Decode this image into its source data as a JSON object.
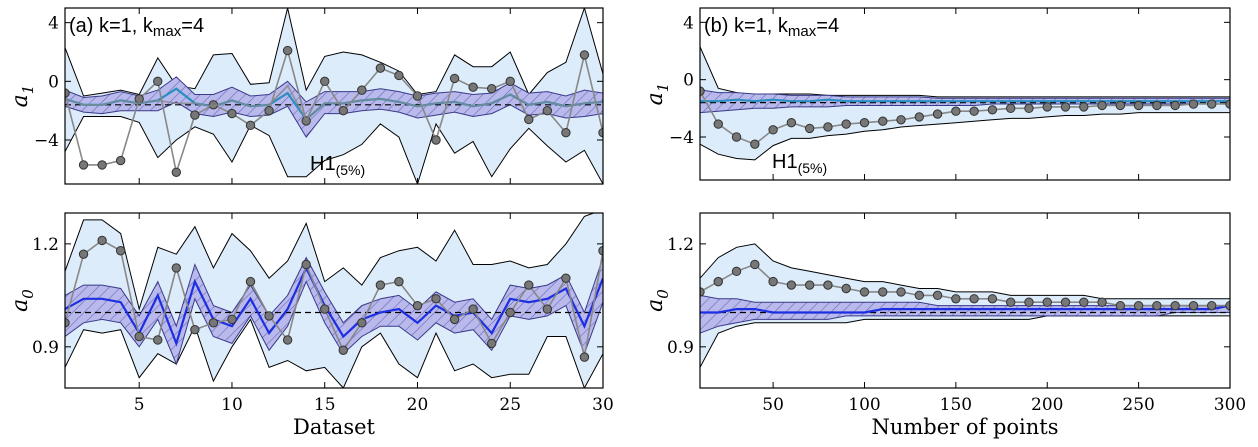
{
  "colors": {
    "outer_band": "#dcecfa",
    "inner_band": "#b9b9ec",
    "hatch": "#6a6ab8",
    "mean_line_a1": "#2a8ec0",
    "mean_line_a0": "#1d2fe0",
    "dataset_line": "#888888",
    "dataset_marker": "#777777",
    "true_value": "#000000"
  },
  "chart_data": [
    {
      "type": "line",
      "panel": "a",
      "annotation": "(a) k=1, k",
      "annotation_sub": "max",
      "annotation_tail": "=4",
      "label": "H1",
      "label_sub": "(5%)",
      "ylabel": "a",
      "ylabel_sub": "1",
      "xlabel": "",
      "xlim": [
        1,
        30
      ],
      "ylim": [
        -7,
        5
      ],
      "yticks": [
        "4",
        "0",
        "−4"
      ],
      "xticks": [],
      "x": [
        1,
        2,
        3,
        4,
        5,
        6,
        7,
        8,
        9,
        10,
        11,
        12,
        13,
        14,
        15,
        16,
        17,
        18,
        19,
        20,
        21,
        22,
        23,
        24,
        25,
        26,
        27,
        28,
        29,
        30
      ],
      "true_value": -1.6,
      "series": [
        {
          "values": [
            -0.8,
            -5.7,
            -5.7,
            -5.4,
            -1.2,
            0.0,
            -6.2,
            -2.3,
            -1.6,
            -2.2,
            -3.0,
            -2.0,
            2.1,
            -2.7,
            0.0,
            -2.0,
            -0.6,
            0.9,
            0.4,
            -1.0,
            -4.0,
            0.2,
            -0.4,
            -0.5,
            0.0,
            -2.6,
            -2.0,
            -3.5,
            1.8,
            -3.5
          ]
        },
        {
          "values": [
            -1.2,
            -1.6,
            -1.6,
            -1.3,
            -1.5,
            -1.3,
            -1.5,
            -1.5,
            -1.7,
            -1.3,
            -1.7,
            -1.6,
            -0.3,
            -2.6,
            -1.5,
            -1.5,
            -1.3,
            -1.2,
            -1.4,
            -1.7,
            -1.5,
            -1.4,
            -1.7,
            -1.5,
            -0.9,
            -1.6,
            -1.4,
            -1.7,
            -1.5,
            -1.4
          ]
        }
      ],
      "mean": [
        -1.2,
        -1.6,
        -1.6,
        -1.3,
        -1.5,
        -1.3,
        -0.5,
        -1.5,
        -1.7,
        -1.3,
        -1.7,
        -1.6,
        -0.8,
        -2.6,
        -1.5,
        -1.5,
        -1.3,
        -1.2,
        -1.4,
        -1.7,
        -1.5,
        -1.4,
        -1.7,
        -1.5,
        -0.9,
        -1.6,
        -1.4,
        -1.7,
        -1.5,
        -1.4
      ],
      "inner_band": {
        "upper": [
          -0.6,
          -1.1,
          -1.0,
          -0.7,
          -1.0,
          -0.6,
          0.3,
          -0.9,
          -0.9,
          -0.4,
          -1.0,
          -0.9,
          0.0,
          -1.4,
          -0.7,
          -0.7,
          -0.7,
          -0.5,
          -0.7,
          -1.0,
          -0.8,
          -0.7,
          -0.9,
          -0.8,
          -0.1,
          -0.8,
          -0.7,
          -1.0,
          -0.6,
          -0.8
        ],
        "lower": [
          -1.7,
          -2.1,
          -2.2,
          -2.0,
          -2.0,
          -2.0,
          -1.4,
          -2.2,
          -2.4,
          -2.1,
          -2.4,
          -2.3,
          -1.7,
          -3.8,
          -2.2,
          -2.2,
          -2.0,
          -1.9,
          -2.1,
          -2.5,
          -2.3,
          -2.1,
          -2.4,
          -2.2,
          -1.6,
          -2.3,
          -2.2,
          -2.5,
          -2.4,
          -2.2
        ]
      },
      "outer_band": {
        "upper": [
          2.3,
          -1.0,
          -0.8,
          -0.6,
          -0.9,
          1.6,
          -0.3,
          -0.5,
          1.8,
          1.9,
          -0.2,
          -0.1,
          5.0,
          -0.6,
          1.7,
          2.0,
          1.8,
          1.3,
          0.7,
          -0.9,
          -0.7,
          1.8,
          1.0,
          1.0,
          2.0,
          -0.9,
          0.6,
          1.3,
          5.0,
          0.5
        ],
        "lower": [
          -4.8,
          -2.4,
          -2.4,
          -2.4,
          -2.8,
          -5.2,
          -4.0,
          -3.1,
          -3.6,
          -5.5,
          -3.0,
          -3.7,
          -6.5,
          -6.5,
          -5.4,
          -5.0,
          -4.3,
          -2.9,
          -3.8,
          -7.0,
          -2.9,
          -4.9,
          -4.1,
          -6.5,
          -4.6,
          -3.2,
          -4.4,
          -5.5,
          -4.7,
          -7.0
        ]
      }
    },
    {
      "type": "line",
      "panel": "a",
      "ylabel": "a",
      "ylabel_sub": "0",
      "xlabel": "Dataset",
      "xlim": [
        1,
        30
      ],
      "ylim": [
        0.78,
        1.29
      ],
      "yticks": [
        "1.2",
        "0.9"
      ],
      "xticks": [
        "5",
        "10",
        "15",
        "20",
        "25",
        "30"
      ],
      "x": [
        1,
        2,
        3,
        4,
        5,
        6,
        7,
        8,
        9,
        10,
        11,
        12,
        13,
        14,
        15,
        16,
        17,
        18,
        19,
        20,
        21,
        22,
        23,
        24,
        25,
        26,
        27,
        28,
        29,
        30
      ],
      "true_value": 1.0,
      "series": [
        {
          "values": [
            0.97,
            1.17,
            1.21,
            1.18,
            0.93,
            0.92,
            1.13,
            0.95,
            0.97,
            0.98,
            1.09,
            0.99,
            0.92,
            1.14,
            1.01,
            0.89,
            0.97,
            1.08,
            1.09,
            1.02,
            1.04,
            0.98,
            1.01,
            0.91,
            1.0,
            1.08,
            1.01,
            1.1,
            0.87,
            1.18
          ]
        }
      ],
      "mean": [
        1.01,
        1.04,
        1.04,
        1.03,
        0.94,
        1.05,
        0.91,
        1.09,
        0.98,
        0.96,
        1.04,
        0.94,
        1.01,
        1.13,
        1.02,
        0.93,
        0.98,
        1.0,
        1.01,
        0.97,
        1.02,
        0.99,
        1.0,
        0.94,
        1.04,
        1.03,
        1.04,
        1.07,
        0.96,
        1.1
      ],
      "inner_band": {
        "upper": [
          1.05,
          1.08,
          1.08,
          1.07,
          0.99,
          1.09,
          0.96,
          1.14,
          1.02,
          1.0,
          1.08,
          0.99,
          1.05,
          1.16,
          1.06,
          0.97,
          1.02,
          1.04,
          1.05,
          1.01,
          1.06,
          1.03,
          1.04,
          0.98,
          1.08,
          1.07,
          1.08,
          1.11,
          1.0,
          1.16
        ],
        "lower": [
          0.93,
          0.97,
          0.98,
          0.97,
          0.9,
          0.98,
          0.85,
          1.04,
          0.93,
          0.91,
          0.99,
          0.89,
          0.96,
          1.09,
          0.97,
          0.88,
          0.93,
          0.96,
          0.96,
          0.92,
          0.97,
          0.94,
          0.95,
          0.89,
          0.99,
          0.98,
          0.99,
          1.02,
          0.88,
          1.03
        ]
      },
      "outer_band": {
        "upper": [
          1.12,
          1.27,
          1.27,
          1.23,
          1.01,
          1.19,
          1.17,
          1.25,
          1.13,
          1.23,
          1.18,
          1.1,
          1.15,
          1.26,
          1.09,
          1.13,
          1.08,
          1.16,
          1.18,
          1.19,
          1.15,
          1.24,
          1.14,
          1.14,
          1.15,
          1.13,
          1.14,
          1.2,
          1.28,
          1.3
        ],
        "lower": [
          0.84,
          0.95,
          0.94,
          0.95,
          0.81,
          0.88,
          0.85,
          0.96,
          0.8,
          0.9,
          0.98,
          0.84,
          0.86,
          0.83,
          0.84,
          0.78,
          0.9,
          0.94,
          0.85,
          0.81,
          0.94,
          0.83,
          0.85,
          0.81,
          0.82,
          0.82,
          0.93,
          0.93,
          0.78,
          0.88
        ]
      }
    },
    {
      "type": "line",
      "panel": "b",
      "annotation": "(b) k=1, k",
      "annotation_sub": "max",
      "annotation_tail": "=4",
      "label": "H1",
      "label_sub": "(5%)",
      "ylabel": "a",
      "ylabel_sub": "1",
      "xlabel": "",
      "xlim": [
        10,
        300
      ],
      "ylim": [
        -7,
        5
      ],
      "yticks": [
        "4",
        "0",
        "−4"
      ],
      "xticks": [],
      "x": [
        10,
        20,
        30,
        40,
        50,
        60,
        70,
        80,
        90,
        100,
        110,
        120,
        130,
        140,
        150,
        160,
        170,
        180,
        190,
        200,
        210,
        220,
        230,
        240,
        250,
        260,
        270,
        280,
        290,
        300
      ],
      "true_value": -1.6,
      "series": [
        {
          "values": [
            -0.8,
            -3.1,
            -4.0,
            -4.5,
            -3.5,
            -3.0,
            -3.4,
            -3.3,
            -3.1,
            -3.0,
            -2.9,
            -2.8,
            -2.6,
            -2.4,
            -2.2,
            -2.2,
            -2.1,
            -2.0,
            -2.0,
            -1.9,
            -1.9,
            -1.9,
            -1.8,
            -1.8,
            -1.8,
            -1.8,
            -1.8,
            -1.7,
            -1.7,
            -1.7
          ]
        }
      ],
      "mean": [
        -1.5,
        -1.5,
        -1.4,
        -1.5,
        -1.4,
        -1.5,
        -1.5,
        -1.4,
        -1.5,
        -1.5,
        -1.5,
        -1.5,
        -1.5,
        -1.5,
        -1.5,
        -1.5,
        -1.5,
        -1.5,
        -1.5,
        -1.5,
        -1.5,
        -1.5,
        -1.5,
        -1.5,
        -1.5,
        -1.5,
        -1.5,
        -1.5,
        -1.5,
        -1.5
      ],
      "inner_band": {
        "upper": [
          -0.7,
          -0.9,
          -0.9,
          -1.0,
          -1.0,
          -1.1,
          -1.1,
          -1.1,
          -1.2,
          -1.2,
          -1.2,
          -1.2,
          -1.2,
          -1.3,
          -1.3,
          -1.3,
          -1.3,
          -1.3,
          -1.3,
          -1.3,
          -1.3,
          -1.3,
          -1.3,
          -1.3,
          -1.3,
          -1.3,
          -1.3,
          -1.3,
          -1.3,
          -1.3
        ],
        "lower": [
          -2.3,
          -2.2,
          -2.1,
          -2.0,
          -2.0,
          -1.9,
          -1.9,
          -1.9,
          -1.8,
          -1.8,
          -1.8,
          -1.8,
          -1.8,
          -1.8,
          -1.8,
          -1.8,
          -1.7,
          -1.7,
          -1.7,
          -1.7,
          -1.7,
          -1.7,
          -1.7,
          -1.7,
          -1.7,
          -1.7,
          -1.7,
          -1.7,
          -1.7,
          -1.7
        ]
      },
      "outer_band": {
        "upper": [
          2.3,
          -0.6,
          -0.9,
          -1.2,
          -1.0,
          -1.0,
          -1.0,
          -1.1,
          -1.1,
          -1.1,
          -1.1,
          -1.1,
          -1.1,
          -1.2,
          -1.2,
          -1.2,
          -1.2,
          -1.2,
          -1.2,
          -1.2,
          -1.2,
          -1.2,
          -1.2,
          -1.2,
          -1.2,
          -1.2,
          -1.2,
          -1.2,
          -1.2,
          -1.2
        ],
        "lower": [
          -4.5,
          -5.2,
          -5.5,
          -5.6,
          -4.6,
          -4.1,
          -4.1,
          -3.9,
          -3.8,
          -3.6,
          -3.5,
          -3.3,
          -3.2,
          -3.1,
          -3.0,
          -2.9,
          -2.8,
          -2.7,
          -2.7,
          -2.6,
          -2.5,
          -2.5,
          -2.4,
          -2.4,
          -2.3,
          -2.3,
          -2.3,
          -2.3,
          -2.3,
          -2.3
        ]
      }
    },
    {
      "type": "line",
      "panel": "b",
      "ylabel": "a",
      "ylabel_sub": "0",
      "xlabel": "Number of points",
      "xlim": [
        10,
        300
      ],
      "ylim": [
        0.78,
        1.29
      ],
      "yticks": [
        "1.2",
        "0.9"
      ],
      "xticks": [
        "50",
        "100",
        "150",
        "200",
        "250",
        "300"
      ],
      "x": [
        10,
        20,
        30,
        40,
        50,
        60,
        70,
        80,
        90,
        100,
        110,
        120,
        130,
        140,
        150,
        160,
        170,
        180,
        190,
        200,
        210,
        220,
        230,
        240,
        250,
        260,
        270,
        280,
        290,
        300
      ],
      "true_value": 1.0,
      "series": [
        {
          "values": [
            1.06,
            1.09,
            1.12,
            1.14,
            1.09,
            1.08,
            1.08,
            1.08,
            1.07,
            1.06,
            1.06,
            1.06,
            1.05,
            1.05,
            1.04,
            1.04,
            1.04,
            1.03,
            1.03,
            1.03,
            1.03,
            1.03,
            1.03,
            1.02,
            1.02,
            1.02,
            1.02,
            1.02,
            1.02,
            1.02
          ]
        }
      ],
      "mean": [
        1.0,
        1.0,
        1.01,
        1.01,
        1.0,
        1.0,
        1.0,
        1.0,
        1.0,
        1.0,
        1.01,
        1.01,
        1.01,
        1.01,
        1.01,
        1.01,
        1.01,
        1.01,
        1.01,
        1.01,
        1.01,
        1.01,
        1.01,
        1.01,
        1.01,
        1.01,
        1.01,
        1.01,
        1.01,
        1.02
      ],
      "inner_band": {
        "upper": [
          1.05,
          1.04,
          1.04,
          1.03,
          1.03,
          1.03,
          1.03,
          1.03,
          1.03,
          1.03,
          1.03,
          1.03,
          1.03,
          1.02,
          1.02,
          1.02,
          1.02,
          1.02,
          1.02,
          1.02,
          1.02,
          1.02,
          1.02,
          1.02,
          1.02,
          1.02,
          1.02,
          1.02,
          1.02,
          1.02
        ],
        "lower": [
          0.94,
          0.96,
          0.97,
          0.98,
          0.98,
          0.98,
          0.98,
          0.98,
          0.99,
          0.99,
          0.99,
          0.99,
          0.99,
          0.99,
          0.99,
          0.99,
          0.99,
          0.99,
          0.99,
          0.99,
          0.99,
          0.99,
          0.99,
          0.99,
          0.99,
          0.99,
          1.0,
          1.0,
          1.0,
          1.0
        ]
      },
      "outer_band": {
        "upper": [
          1.1,
          1.16,
          1.19,
          1.2,
          1.15,
          1.13,
          1.12,
          1.11,
          1.1,
          1.09,
          1.09,
          1.08,
          1.07,
          1.07,
          1.06,
          1.06,
          1.06,
          1.05,
          1.05,
          1.05,
          1.05,
          1.05,
          1.04,
          1.04,
          1.04,
          1.04,
          1.04,
          1.04,
          1.04,
          1.04
        ],
        "lower": [
          0.84,
          0.94,
          0.96,
          0.97,
          0.97,
          0.97,
          0.97,
          0.97,
          0.97,
          0.98,
          0.98,
          0.98,
          0.98,
          0.98,
          0.98,
          0.98,
          0.98,
          0.98,
          0.98,
          0.99,
          0.99,
          0.99,
          0.99,
          0.99,
          0.99,
          0.99,
          0.99,
          0.99,
          0.99,
          0.99
        ]
      }
    }
  ]
}
